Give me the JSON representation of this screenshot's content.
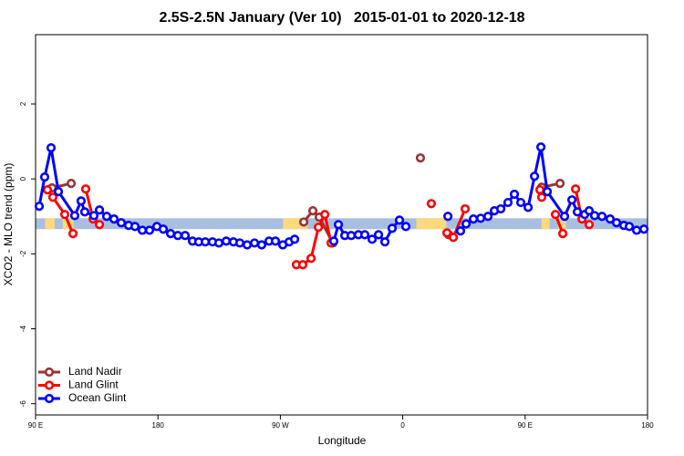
{
  "chart_data": {
    "type": "line",
    "title": "2.5S-2.5N January (Ver 10)   2015-01-01 to 2020-12-18",
    "xlabel": "Longitude",
    "ylabel": "XCO2 - MLO trend (ppm)",
    "xlim": [
      90,
      540
    ],
    "ylim": [
      -6.3,
      3.85
    ],
    "xticks": [
      {
        "value": 90,
        "label": "90 E"
      },
      180,
      {
        "value": 270,
        "label": "90 W"
      },
      {
        "value": 360,
        "label": "0"
      },
      {
        "value": 450,
        "label": "90 E"
      },
      {
        "value": 540,
        "label": "180"
      }
    ],
    "yticks": [
      -6,
      -4,
      -2,
      0,
      2
    ],
    "legend": "bottom-left",
    "band": {
      "ylim": [
        -1.34,
        -1.05
      ],
      "color": "#a9bfe0",
      "land_color": "#fcd97d",
      "land_segments": [
        [
          97,
          104
        ],
        [
          110,
          118
        ],
        [
          272,
          290
        ],
        [
          370,
          392
        ],
        [
          462,
          468
        ],
        [
          474,
          480
        ]
      ]
    },
    "series": [
      {
        "name": "Land Nadir",
        "color": "#993333",
        "x": [
          102.1,
          116.2,
          null,
          287.2,
          293.9,
          298.6,
          308.6,
          null,
          373,
          null,
          393.8,
          null,
          462.2,
          475.7
        ],
        "values": [
          -0.24,
          -0.12,
          null,
          -1.15,
          -0.85,
          -1.02,
          -1.71,
          null,
          0.56,
          null,
          -1.49,
          null,
          -0.22,
          -0.12
        ]
      },
      {
        "name": "Land Glint",
        "color": "#ff0000",
        "x": [
          98.7,
          102.7,
          111.5,
          117.5,
          null,
          126.9,
          132.3,
          137,
          null,
          281.8,
          286.5,
          292.6,
          298,
          302.7,
          307.3,
          null,
          381,
          null,
          392.5,
          397.2,
          405.9,
          null,
          460.9,
          462.2,
          null,
          472.3,
          477.7,
          null,
          487.1,
          491.8,
          497.1
        ],
        "values": [
          -0.29,
          -0.49,
          -0.95,
          -1.46,
          null,
          -0.27,
          -1.07,
          -1.22,
          null,
          -2.29,
          -2.29,
          -2.12,
          -1.29,
          -0.95,
          -1.71,
          null,
          -0.66,
          null,
          -1.44,
          -1.56,
          -0.8,
          null,
          -0.29,
          -0.49,
          null,
          -0.95,
          -1.46,
          null,
          -0.27,
          -1.07,
          -1.22
        ]
      },
      {
        "name": "Ocean Glint",
        "color": "#0000ff",
        "x": [
          92.7,
          96.7,
          101.4,
          106.8,
          118.8,
          123.5,
          126.2,
          132.9,
          137,
          142.3,
          147.7,
          153,
          158.4,
          163.1,
          168.5,
          173.8,
          179.2,
          183.9,
          189.3,
          194.6,
          200,
          205.4,
          210,
          214.8,
          220.1,
          224.8,
          230.2,
          235.5,
          240.2,
          245.6,
          251,
          256.3,
          261.7,
          266.4,
          271.8,
          276.5,
          280.5,
          null,
          309.3,
          312.7,
          317.4,
          322.1,
          327.4,
          332.1,
          337.5,
          342.2,
          346.9,
          352.2,
          357.6,
          362.3,
          null,
          393.2,
          null,
          402.5,
          406.6,
          412,
          417.3,
          422.7,
          427.4,
          432.1,
          437.4,
          442.1,
          446.8,
          452.2,
          456.9,
          461.6,
          466.3,
          479,
          484.4,
          488.4,
          493.8,
          497.1,
          501.1,
          506.5,
          512.5,
          517.2,
          522.6,
          526.6,
          532,
          537.4
        ],
        "values": [
          -0.73,
          0.05,
          0.83,
          -0.34,
          -0.98,
          -0.59,
          -0.88,
          -0.98,
          -0.83,
          -1.0,
          -1.07,
          -1.17,
          -1.24,
          -1.27,
          -1.37,
          -1.37,
          -1.27,
          -1.34,
          -1.46,
          -1.51,
          -1.51,
          -1.66,
          -1.68,
          -1.68,
          -1.68,
          -1.71,
          -1.66,
          -1.68,
          -1.71,
          -1.76,
          -1.71,
          -1.76,
          -1.66,
          -1.66,
          -1.76,
          -1.68,
          -1.61,
          null,
          -1.66,
          -1.22,
          -1.51,
          -1.51,
          -1.49,
          -1.49,
          -1.61,
          -1.49,
          -1.68,
          -1.32,
          -1.1,
          -1.27,
          null,
          -1.0,
          null,
          -1.39,
          -1.2,
          -1.07,
          -1.05,
          -1.0,
          -0.85,
          -0.8,
          -0.63,
          -0.41,
          -0.63,
          -0.76,
          0.07,
          0.85,
          -0.34,
          -1.0,
          -0.56,
          -0.88,
          -0.95,
          -0.85,
          -0.98,
          -1.0,
          -1.07,
          -1.17,
          -1.24,
          -1.27,
          -1.37,
          -1.34
        ]
      }
    ]
  }
}
